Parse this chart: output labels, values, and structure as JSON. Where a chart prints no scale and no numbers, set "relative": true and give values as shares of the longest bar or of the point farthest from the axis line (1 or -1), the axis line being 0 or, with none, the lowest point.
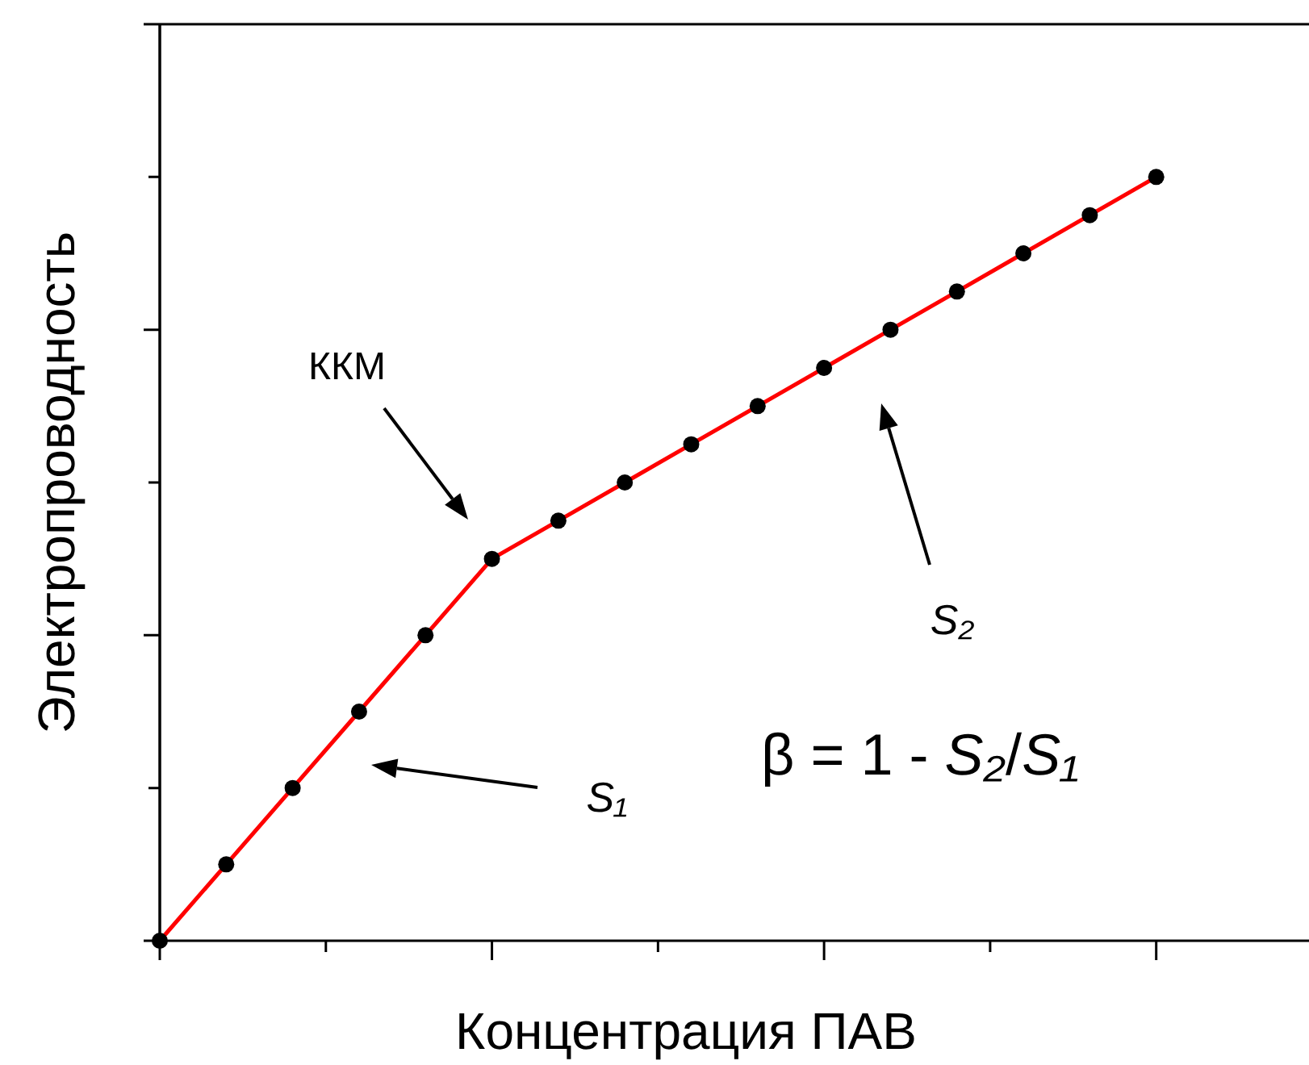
{
  "chart_data": {
    "type": "line",
    "xlabel": "Концентрация ПАВ",
    "ylabel": "Электропроводность",
    "relative": true,
    "marker": "circle",
    "categories": [
      null,
      null,
      null,
      null,
      null,
      null,
      null,
      null,
      null,
      null,
      null,
      null,
      null,
      null,
      null,
      null
    ],
    "series": [
      {
        "color": "#ff0000",
        "values": [
          0,
          0.1,
          0.2,
          0.3,
          0.4,
          0.5,
          0.55,
          0.6,
          0.65,
          0.7,
          0.75,
          0.8,
          0.85,
          0.9,
          0.95,
          1.0
        ]
      }
    ],
    "annotations": [
      "ККМ",
      "S₁",
      "S₂",
      "β = 1 - S₂/S₁"
    ]
  }
}
